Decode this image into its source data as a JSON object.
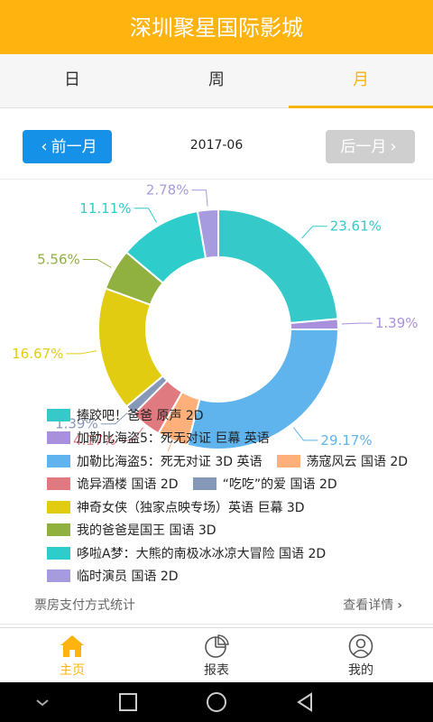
{
  "header": {
    "title": "深圳聚星国际影城"
  },
  "tabs": [
    {
      "label": "日"
    },
    {
      "label": "周"
    },
    {
      "label": "月"
    }
  ],
  "date_nav": {
    "prev_label": "前一月",
    "next_label": "后一月",
    "current": "2017-06"
  },
  "chart_data": {
    "type": "pie",
    "donut": true,
    "slices": [
      {
        "label": "捧跤吧！爸爸 原声 2D",
        "value": 23.61,
        "color": "#35c9c9"
      },
      {
        "label": "加勒比海盗5：死无对证 巨幕 英语",
        "value": 1.39,
        "color": "#a990dd"
      },
      {
        "label": "加勒比海盗5：死无对证 3D 英语",
        "value": 29.17,
        "color": "#5fb4ee"
      },
      {
        "label": "荡寇风云 国语 2D",
        "value": 4.17,
        "color": "#ffb07a"
      },
      {
        "label": "诡异酒楼 国语 2D",
        "value": 4.17,
        "color": "#df7a80"
      },
      {
        "label": "“吃吃”的爱 国语 2D",
        "value": 1.39,
        "color": "#8598b8"
      },
      {
        "label": "神奇女侠（独家点映专场）英语 巨幕 3D",
        "value": 16.67,
        "color": "#e1cc12"
      },
      {
        "label": "我的爸爸是国王 国语 3D",
        "value": 5.56,
        "color": "#90b040"
      },
      {
        "label": "哆啦A梦：大熊的南极冰冰凉大冒险 国语 2D",
        "value": 11.11,
        "color": "#2fcccc"
      },
      {
        "label": "临时演员 国语 2D",
        "value": 2.78,
        "color": "#a79be0"
      }
    ],
    "percent_labels": [
      "23.61%",
      "1.39%",
      "29.17%",
      "4.17%",
      "4.17%",
      "1.39%",
      "16.67%",
      "5.56%",
      "11.11%",
      "2.78%"
    ]
  },
  "legend": {
    "rows": [
      [
        {
          "label": "捧跤吧！爸爸 原声 2D",
          "color": "#35c9c9"
        }
      ],
      [
        {
          "label": "加勒比海盗5：死无对证 巨幕 英语",
          "color": "#a990dd"
        }
      ],
      [
        {
          "label": "加勒比海盗5：死无对证   3D  英语",
          "color": "#5fb4ee"
        },
        {
          "label": "荡寇风云 国语 2D",
          "color": "#ffb07a"
        }
      ],
      [
        {
          "label": "诡异酒楼 国语 2D",
          "color": "#df7a80"
        },
        {
          "label": "“吃吃”的爱 国语 2D",
          "color": "#8598b8"
        }
      ],
      [
        {
          "label": "神奇女侠（独家点映专场）英语 巨幕 3D",
          "color": "#e1cc12"
        }
      ],
      [
        {
          "label": "我的爸爸是国王 国语 3D",
          "color": "#90b040"
        }
      ],
      [
        {
          "label": "哆啦A梦：大熊的南极冰冰凉大冒险  国语 2D",
          "color": "#2fcccc"
        }
      ],
      [
        {
          "label": "临时演员 国语 2D",
          "color": "#a79be0"
        }
      ]
    ]
  },
  "footer": {
    "left": "票房支付方式统计",
    "right": "查看详情"
  },
  "bottom_nav": [
    {
      "label": "主页",
      "icon": "home-icon"
    },
    {
      "label": "报表",
      "icon": "pie-chart-icon"
    },
    {
      "label": "我的",
      "icon": "user-icon"
    }
  ],
  "colors": {
    "brand": "#ffb30f",
    "prev_button": "#1592e8",
    "next_button": "#cfcfcf"
  }
}
